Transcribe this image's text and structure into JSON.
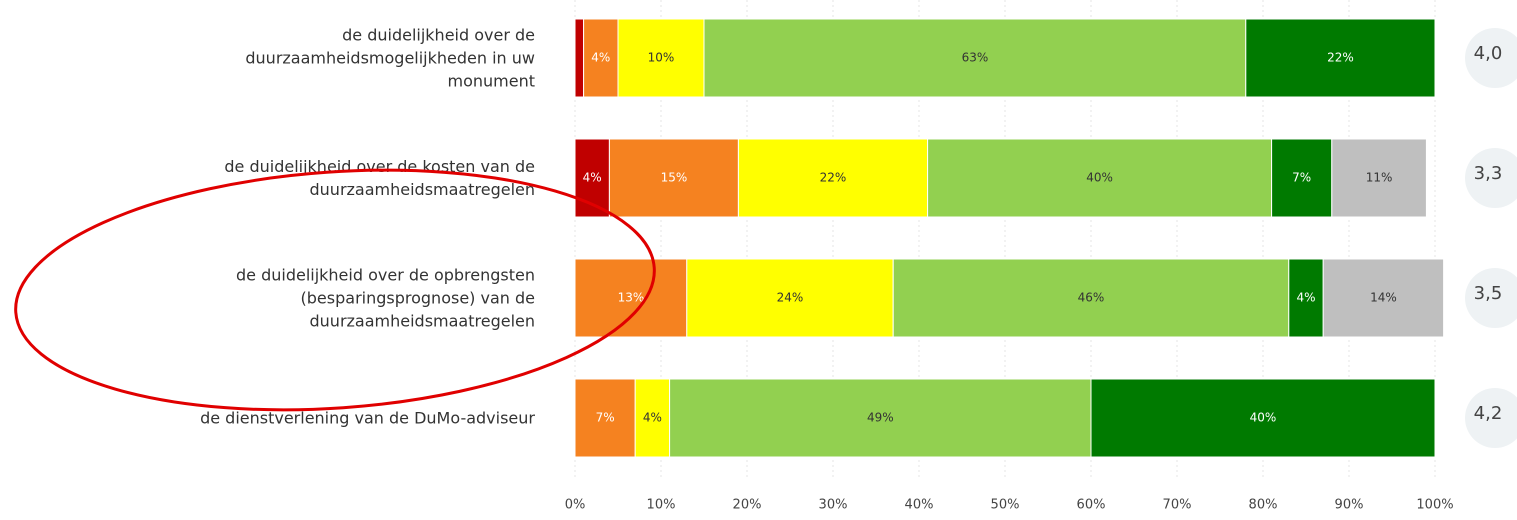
{
  "chart_data": {
    "type": "stacked-bar-horizontal",
    "categories": [
      "de duidelijkheid over de\nduurzaamheidsmogelijkheden in uw\nmonument",
      "de duidelijkheid over de kosten van de\nduurzaamheidsmaatregelen",
      "de duidelijkheid over de opbrengsten\n(besparingsprognose) van de\nduurzaamheidsmaatregelen",
      "de dienstverlening van de DuMo-adviseur"
    ],
    "series": [
      {
        "color": "#c00000",
        "values": [
          1,
          4,
          null,
          null
        ],
        "value_labels": [
          null,
          "4%",
          null,
          null
        ]
      },
      {
        "color": "#f58220",
        "values": [
          4,
          15,
          13,
          7
        ],
        "value_labels": [
          "4%",
          "15%",
          "13%",
          "7%"
        ]
      },
      {
        "color": "#ffff00",
        "values": [
          10,
          22,
          24,
          4
        ],
        "value_labels": [
          "10%",
          "22%",
          "24%",
          "4%"
        ]
      },
      {
        "color": "#92d050",
        "values": [
          63,
          40,
          46,
          49
        ],
        "value_labels": [
          "63%",
          "40%",
          "46%",
          "49%"
        ]
      },
      {
        "color": "#007a00",
        "values": [
          22,
          7,
          4,
          40
        ],
        "value_labels": [
          "22%",
          "7%",
          "4%",
          "40%"
        ]
      },
      {
        "color": "#bfbfbf",
        "values": [
          null,
          11,
          14,
          null
        ],
        "value_labels": [
          null,
          "11%",
          "14%",
          null
        ]
      }
    ],
    "scores": [
      4.0,
      3.3,
      3.5,
      4.2
    ],
    "score_labels": [
      "4,0",
      "3,3",
      "3,5",
      "4,2"
    ],
    "xlim": [
      0,
      100
    ],
    "xticks": [
      {
        "value": 0,
        "label": "0%"
      },
      {
        "value": 10,
        "label": "10%"
      },
      {
        "value": 20,
        "label": "20%"
      },
      {
        "value": 30,
        "label": "30%"
      },
      {
        "value": 40,
        "label": "40%"
      },
      {
        "value": 50,
        "label": "50%"
      },
      {
        "value": 60,
        "label": "60%"
      },
      {
        "value": 70,
        "label": "70%"
      },
      {
        "value": 80,
        "label": "80%"
      },
      {
        "value": 90,
        "label": "90%"
      },
      {
        "value": 100,
        "label": "100%"
      }
    ],
    "grid": true
  }
}
